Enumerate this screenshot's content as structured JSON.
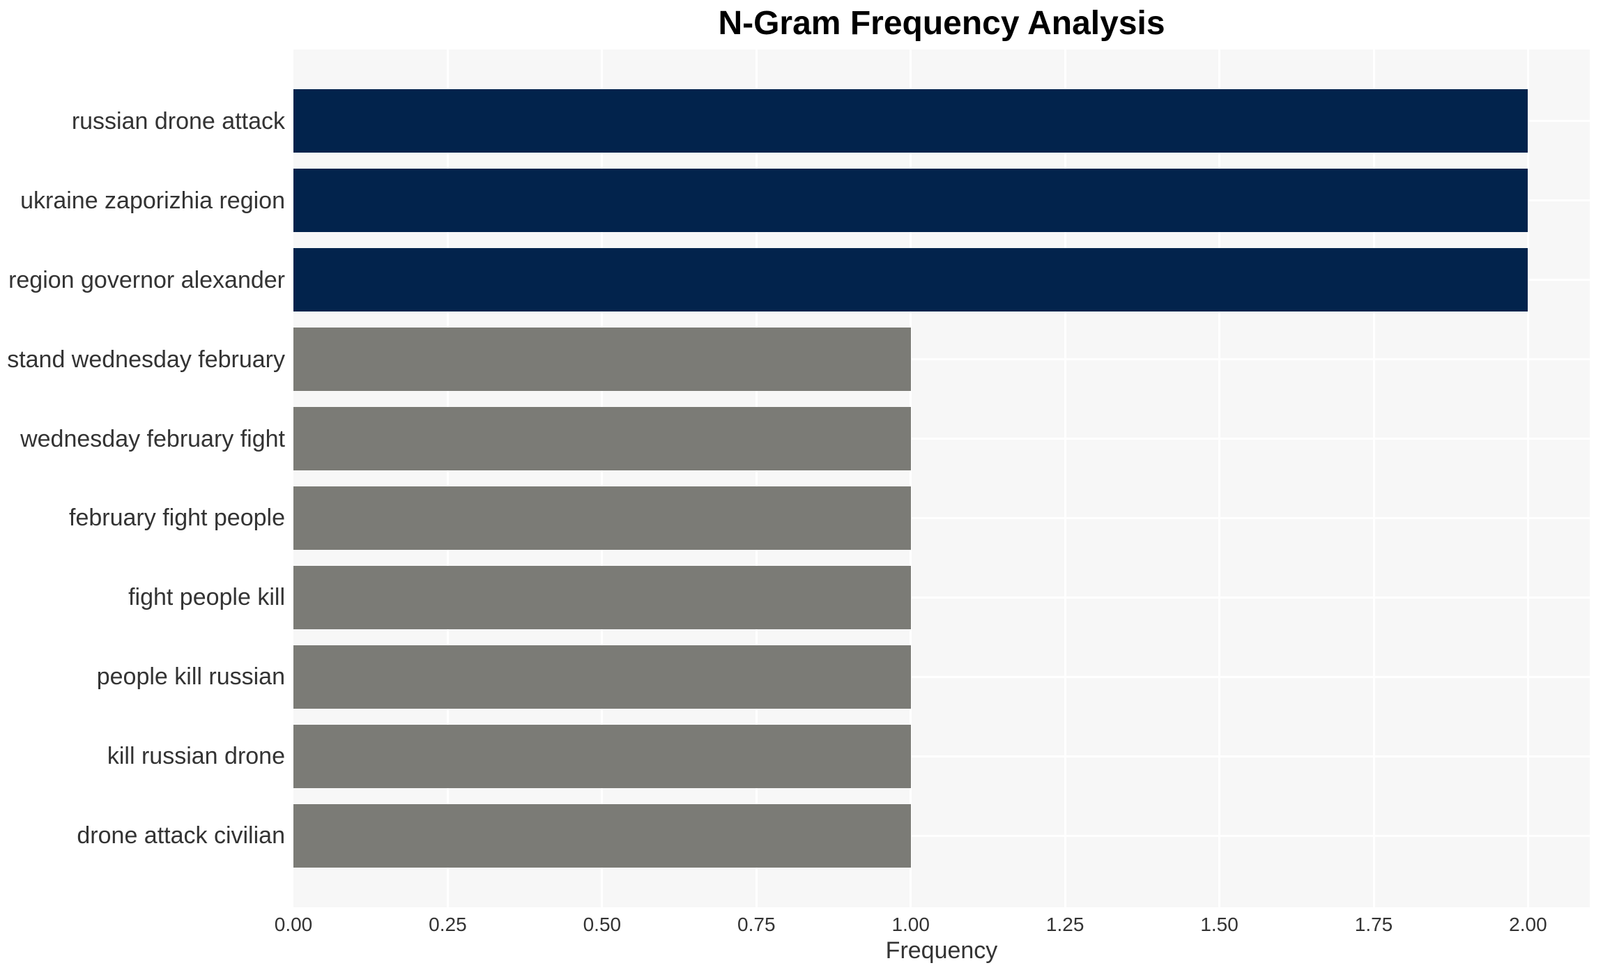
{
  "chart_data": {
    "type": "bar",
    "orientation": "horizontal",
    "title": "N-Gram Frequency Analysis",
    "xlabel": "Frequency",
    "ylabel": "",
    "categories": [
      "russian drone attack",
      "ukraine zaporizhia region",
      "region governor alexander",
      "stand wednesday february",
      "wednesday february fight",
      "february fight people",
      "fight people kill",
      "people kill russian",
      "kill russian drone",
      "drone attack civilian"
    ],
    "values": [
      2,
      2,
      2,
      1,
      1,
      1,
      1,
      1,
      1,
      1
    ],
    "bar_colors": [
      "#02234c",
      "#02234c",
      "#02234c",
      "#7b7b76",
      "#7b7b76",
      "#7b7b76",
      "#7b7b76",
      "#7b7b76",
      "#7b7b76",
      "#7b7b76"
    ],
    "xlim": [
      0,
      2.1
    ],
    "xticks": [
      0.0,
      0.25,
      0.5,
      0.75,
      1.0,
      1.25,
      1.5,
      1.75,
      2.0
    ],
    "xtick_labels": [
      "0.00",
      "0.25",
      "0.50",
      "0.75",
      "1.00",
      "1.25",
      "1.50",
      "1.75",
      "2.00"
    ],
    "grid": true,
    "legend": false,
    "colors": {
      "highlight_bar": "#02234c",
      "default_bar": "#7b7b76",
      "plot_bg": "#f7f7f7",
      "grid_color": "#ffffff",
      "text": "#333333",
      "title": "#000000",
      "figure_bg": "#ffffff"
    }
  }
}
